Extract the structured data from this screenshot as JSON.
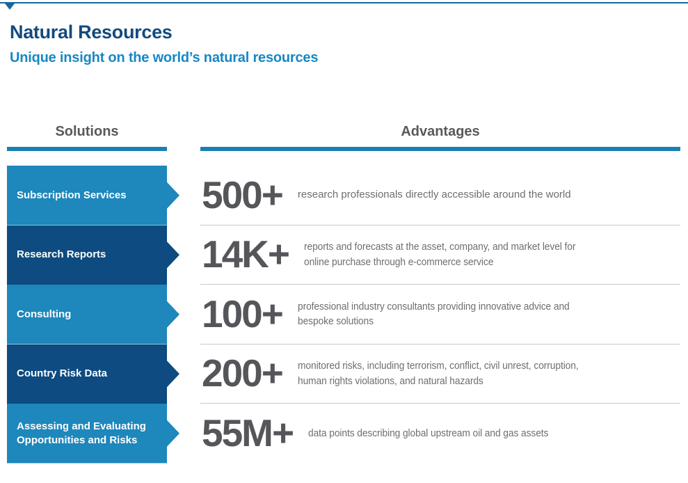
{
  "page": {
    "title": "Natural Resources",
    "subtitle": "Unique insight on the world’s natural resources"
  },
  "columns": {
    "solutions_header": "Solutions",
    "advantages_header": "Advantages"
  },
  "solutions": {
    "items": [
      {
        "label": "Subscription Services"
      },
      {
        "label": "Research Reports"
      },
      {
        "label": "Consulting"
      },
      {
        "label": "Country Risk Data"
      },
      {
        "label": "Assessing and Evaluating\nOpportunities and Risks"
      }
    ]
  },
  "advantages": {
    "rows": [
      {
        "stat": "500+",
        "description": "research professionals directly accessible around the world"
      },
      {
        "stat": "14K+",
        "description": "reports and forecasts at the asset, company, and market level for\nonline purchase through e-commerce service"
      },
      {
        "stat": "100+",
        "description": "professional industry consultants providing innovative advice and\nbespoke solutions"
      },
      {
        "stat": "200+",
        "description": "monitored risks, including terrorism, conflict, civil unrest, corruption,\nhuman rights violations, and natural hazards"
      },
      {
        "stat": "55M+",
        "description": "data points describing global upstream oil and gas assets"
      }
    ]
  },
  "colors": {
    "topline": "#15689E",
    "title": "#134A7D",
    "subtitle": "#1787C5",
    "header_text": "#58595B",
    "header_rule": "#1A7FB5",
    "block_light": "#1E87BB",
    "block_dark": "#0D4B80",
    "stat": "#55565A",
    "desc": "#6D6E71",
    "divider": "#C8C8C8"
  }
}
